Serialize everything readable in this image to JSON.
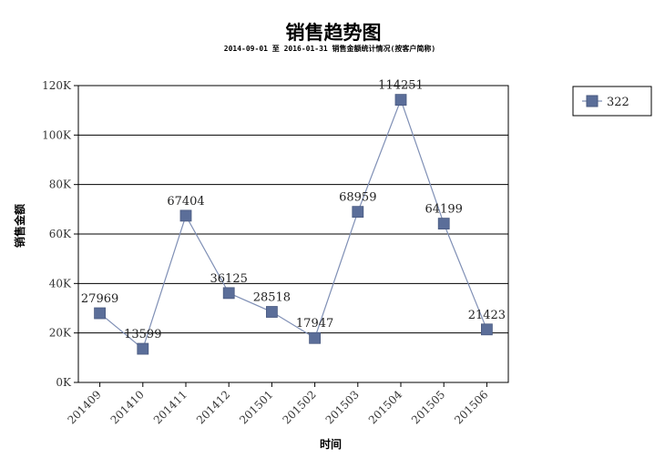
{
  "chart_data": {
    "type": "line",
    "title": "销售趋势图",
    "subtitle": "2014-09-01 至 2016-01-31  销售金额统计情况(按客户简称)",
    "xlabel": "时间",
    "ylabel": "销售金额",
    "categories": [
      "201409",
      "201410",
      "201411",
      "201412",
      "201501",
      "201502",
      "201503",
      "201504",
      "201505",
      "201506"
    ],
    "series": [
      {
        "name": "322",
        "values": [
          27969,
          13599,
          67404,
          36125,
          28518,
          17947,
          68959,
          114251,
          64199,
          21423
        ]
      }
    ],
    "ylim": [
      0,
      120000
    ],
    "yticks": [
      {
        "value": 0,
        "label": "0K"
      },
      {
        "value": 20000,
        "label": "20K"
      },
      {
        "value": 40000,
        "label": "40K"
      },
      {
        "value": 60000,
        "label": "60K"
      },
      {
        "value": 80000,
        "label": "80K"
      },
      {
        "value": 100000,
        "label": "100K"
      },
      {
        "value": 120000,
        "label": "120K"
      }
    ],
    "grid": "horizontal",
    "legend_position": "top-right",
    "colors": {
      "series": "#5b6e99",
      "line": "#7f8fb5",
      "grid": "#000000"
    }
  }
}
